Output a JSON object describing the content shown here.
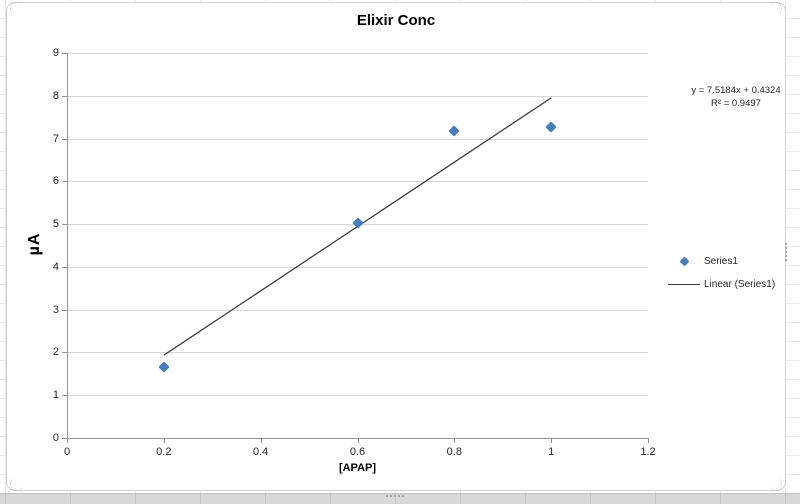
{
  "chart_data": {
    "type": "scatter",
    "title": "Elixir Conc",
    "xlabel": "[APAP]",
    "ylabel": "µA",
    "series": [
      {
        "name": "Series1",
        "marker": "diamond",
        "color": "#4a7ebb",
        "x": [
          0.2,
          0.6,
          0.8,
          1.0
        ],
        "y": [
          1.65,
          5.03,
          7.17,
          7.28
        ]
      }
    ],
    "trendline": {
      "name": "Linear (Series1)",
      "slope": 7.5184,
      "intercept": 0.4324,
      "x_start": 0.2,
      "x_end": 1.0,
      "equation": "y = 7.5184x + 0.4324",
      "r_squared_label": "R² = 0.9497",
      "color": "#3f3f3f"
    },
    "xlim": [
      0,
      1.2
    ],
    "ylim": [
      0,
      9
    ],
    "x_tick_values": [
      0,
      0.2,
      0.4,
      0.6,
      0.8,
      1,
      1.2
    ],
    "x_tick_labels": [
      "0",
      "0.2",
      "0.4",
      "0.6",
      "0.8",
      "1",
      "1.2"
    ],
    "y_tick_values": [
      0,
      1,
      2,
      3,
      4,
      5,
      6,
      7,
      8,
      9
    ],
    "y_tick_labels": [
      "0",
      "1",
      "2",
      "3",
      "4",
      "5",
      "6",
      "7",
      "8",
      "9"
    ],
    "grid": "horizontal-only",
    "legend_position": "right",
    "legend_entries": [
      {
        "label": "Series1",
        "marker": "diamond",
        "color": "#4a7ebb"
      },
      {
        "label": "Linear (Series1)",
        "marker": "line",
        "color": "#3f3f3f"
      }
    ],
    "colors": {
      "gridline": "#d6d6d6",
      "axis": "#959595",
      "marker": "#4a7ebb",
      "trendline": "#3f3f3f",
      "tick_text": "#262626",
      "chart_border": "#d2d2d2"
    }
  }
}
